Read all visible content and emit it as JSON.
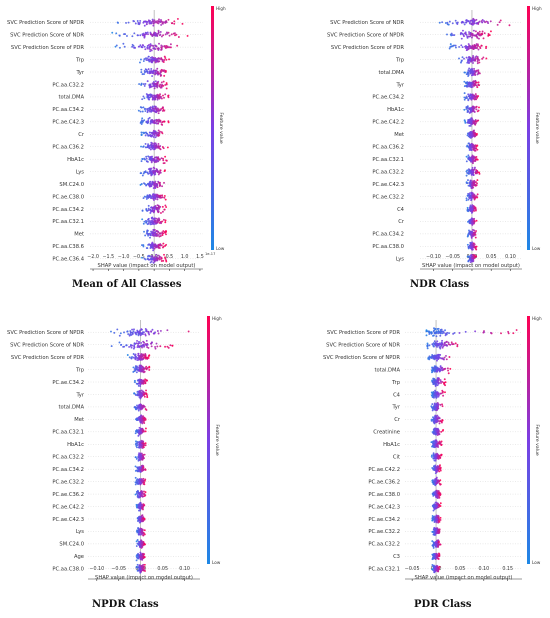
{
  "captions": [
    "Mean of All Classes",
    "NDR Class",
    "NPDR Class",
    "PDR Class"
  ],
  "colors": {
    "low": "#1e88e5",
    "high": "#ff0052",
    "axis": "#333333",
    "zero": "#999999"
  },
  "chart_data": [
    {
      "type": "scatter",
      "subtype": "shap-beeswarm",
      "xlabel": "SHAP value (impact on model output)",
      "x_tick_labels": [
        "−2.0",
        "−1.5",
        "−1.0",
        "−0.5",
        "0.0",
        "0.5",
        "1.0",
        "1.5"
      ],
      "x_ticks": [
        -2.0,
        -1.5,
        -1.0,
        -0.5,
        0.0,
        0.5,
        1.0,
        1.5
      ],
      "x_offset_label": "1e-17",
      "xlim": [
        -2.1,
        1.6
      ],
      "colorbar": {
        "label": "Feature value",
        "high": "High",
        "low": "Low"
      },
      "features": [
        {
          "name": "SVC Prediction Score of NPDR",
          "min": -1.4,
          "max": 1.1,
          "center": 0.0,
          "spread": 0.45,
          "dense": 0.25
        },
        {
          "name": "SVC Prediction Score of NDR",
          "min": -1.4,
          "max": 1.1,
          "center": 0.0,
          "spread": 0.45,
          "dense": 0.25
        },
        {
          "name": "SVC Prediction Score of PDR",
          "min": -1.3,
          "max": 1.0,
          "center": 0.0,
          "spread": 0.4,
          "dense": 0.25
        },
        {
          "name": "Trp",
          "min": -0.5,
          "max": 0.5,
          "center": 0.0,
          "spread": 0.2,
          "dense": 0.15
        },
        {
          "name": "Tyr",
          "min": -0.5,
          "max": 0.5,
          "center": 0.0,
          "spread": 0.2,
          "dense": 0.15
        },
        {
          "name": "PC.aa.C32.2",
          "min": -0.5,
          "max": 0.5,
          "center": 0.0,
          "spread": 0.2,
          "dense": 0.15
        },
        {
          "name": "total.DMA",
          "min": -0.5,
          "max": 0.5,
          "center": 0.0,
          "spread": 0.2,
          "dense": 0.15
        },
        {
          "name": "PC.aa.C34.2",
          "min": -0.5,
          "max": 0.5,
          "center": 0.0,
          "spread": 0.2,
          "dense": 0.15
        },
        {
          "name": "PC.ae.C42.3",
          "min": -0.5,
          "max": 0.5,
          "center": 0.0,
          "spread": 0.2,
          "dense": 0.15
        },
        {
          "name": "Cr",
          "min": -0.45,
          "max": 0.45,
          "center": 0.0,
          "spread": 0.18,
          "dense": 0.12
        },
        {
          "name": "PC.aa.C36.2",
          "min": -0.45,
          "max": 0.45,
          "center": 0.0,
          "spread": 0.18,
          "dense": 0.12
        },
        {
          "name": "HbA1c",
          "min": -0.45,
          "max": 0.45,
          "center": 0.0,
          "spread": 0.18,
          "dense": 0.12
        },
        {
          "name": "Lys",
          "min": -0.45,
          "max": 0.45,
          "center": 0.0,
          "spread": 0.18,
          "dense": 0.12
        },
        {
          "name": "SM.C24.0",
          "min": -0.45,
          "max": 0.45,
          "center": 0.0,
          "spread": 0.18,
          "dense": 0.12
        },
        {
          "name": "PC.ae.C38.0",
          "min": -0.4,
          "max": 0.4,
          "center": 0.0,
          "spread": 0.16,
          "dense": 0.12
        },
        {
          "name": "PC.aa.C34.2",
          "min": -0.4,
          "max": 0.4,
          "center": 0.0,
          "spread": 0.16,
          "dense": 0.12
        },
        {
          "name": "PC.aa.C32.1",
          "min": -0.4,
          "max": 0.4,
          "center": 0.0,
          "spread": 0.16,
          "dense": 0.12
        },
        {
          "name": "Met",
          "min": -0.4,
          "max": 0.4,
          "center": 0.0,
          "spread": 0.16,
          "dense": 0.12
        },
        {
          "name": "PC.aa.C38.6",
          "min": -0.4,
          "max": 0.4,
          "center": 0.0,
          "spread": 0.16,
          "dense": 0.12
        },
        {
          "name": "PC.ae.C36.4",
          "min": -0.4,
          "max": 0.4,
          "center": 0.0,
          "spread": 0.16,
          "dense": 0.12
        }
      ]
    },
    {
      "type": "scatter",
      "subtype": "shap-beeswarm",
      "xlabel": "SHAP value (impact on model output)",
      "x_tick_labels": [
        "−0.10",
        "−0.05",
        "0.00",
        "0.05",
        "0.10"
      ],
      "x_ticks": [
        -0.1,
        -0.05,
        0.0,
        0.05,
        0.1
      ],
      "xlim": [
        -0.135,
        0.13
      ],
      "colorbar": {
        "label": "Feature value",
        "high": "High",
        "low": "Low"
      },
      "features": [
        {
          "name": "SVC Prediction Score of NDR",
          "min": -0.09,
          "max": 0.11,
          "center": 0.0,
          "spread": 0.035,
          "dense": 0.02
        },
        {
          "name": "SVC Prediction Score of NPDR",
          "min": -0.07,
          "max": 0.05,
          "center": 0.0,
          "spread": 0.025,
          "dense": 0.015
        },
        {
          "name": "SVC Prediction Score of PDR",
          "min": -0.06,
          "max": 0.04,
          "center": 0.0,
          "spread": 0.02,
          "dense": 0.012
        },
        {
          "name": "Trp",
          "min": -0.04,
          "max": 0.04,
          "center": 0.0,
          "spread": 0.015,
          "dense": 0.008
        },
        {
          "name": "total.DMA",
          "min": -0.02,
          "max": 0.03,
          "center": 0.0,
          "spread": 0.01,
          "dense": 0.006
        },
        {
          "name": "Tyr",
          "min": -0.02,
          "max": 0.02,
          "center": 0.0,
          "spread": 0.01,
          "dense": 0.006
        },
        {
          "name": "PC.ae.C34.2",
          "min": -0.02,
          "max": 0.02,
          "center": 0.0,
          "spread": 0.008,
          "dense": 0.005
        },
        {
          "name": "HbA1c",
          "min": -0.02,
          "max": 0.02,
          "center": 0.0,
          "spread": 0.008,
          "dense": 0.005
        },
        {
          "name": "PC.ae.C42.2",
          "min": -0.02,
          "max": 0.02,
          "center": 0.0,
          "spread": 0.008,
          "dense": 0.005
        },
        {
          "name": "Met",
          "min": -0.015,
          "max": 0.015,
          "center": 0.0,
          "spread": 0.007,
          "dense": 0.004
        },
        {
          "name": "PC.aa.C36.2",
          "min": -0.015,
          "max": 0.015,
          "center": 0.0,
          "spread": 0.007,
          "dense": 0.004
        },
        {
          "name": "PC.aa.C32.1",
          "min": -0.015,
          "max": 0.015,
          "center": 0.0,
          "spread": 0.007,
          "dense": 0.004
        },
        {
          "name": "PC.aa.C32.2",
          "min": -0.015,
          "max": 0.02,
          "center": 0.0,
          "spread": 0.007,
          "dense": 0.004
        },
        {
          "name": "PC.ae.C42.3",
          "min": -0.015,
          "max": 0.015,
          "center": 0.0,
          "spread": 0.007,
          "dense": 0.004
        },
        {
          "name": "PC.ae.C32.2",
          "min": -0.015,
          "max": 0.015,
          "center": 0.0,
          "spread": 0.007,
          "dense": 0.004
        },
        {
          "name": "C4",
          "min": -0.012,
          "max": 0.012,
          "center": 0.0,
          "spread": 0.006,
          "dense": 0.003
        },
        {
          "name": "Cr",
          "min": -0.012,
          "max": 0.012,
          "center": 0.0,
          "spread": 0.006,
          "dense": 0.003
        },
        {
          "name": "PC.aa.C34.2",
          "min": -0.012,
          "max": 0.012,
          "center": 0.0,
          "spread": 0.006,
          "dense": 0.003
        },
        {
          "name": "PC.aa.C38.0",
          "min": -0.012,
          "max": 0.012,
          "center": 0.0,
          "spread": 0.006,
          "dense": 0.003
        },
        {
          "name": "Lys",
          "min": -0.012,
          "max": 0.012,
          "center": 0.0,
          "spread": 0.006,
          "dense": 0.003
        }
      ]
    },
    {
      "type": "scatter",
      "subtype": "shap-beeswarm",
      "xlabel": "SHAP value (impact on model output)",
      "x_tick_labels": [
        "−0.10",
        "−0.05",
        "0.00",
        "0.05",
        "0.10"
      ],
      "x_ticks": [
        -0.1,
        -0.05,
        0.0,
        0.05,
        0.1
      ],
      "xlim": [
        -0.12,
        0.135
      ],
      "colorbar": {
        "label": "Feature value",
        "high": "High",
        "low": "Low"
      },
      "features": [
        {
          "name": "SVC Prediction Score of NPDR",
          "min": -0.07,
          "max": 0.12,
          "center": 0.0,
          "spread": 0.03,
          "dense": 0.02
        },
        {
          "name": "SVC Prediction Score of NDR",
          "min": -0.07,
          "max": 0.08,
          "center": 0.0,
          "spread": 0.025,
          "dense": 0.015
        },
        {
          "name": "SVC Prediction Score of PDR",
          "min": -0.03,
          "max": 0.02,
          "center": 0.0,
          "spread": 0.012,
          "dense": 0.008
        },
        {
          "name": "Trp",
          "min": -0.02,
          "max": 0.02,
          "center": 0.0,
          "spread": 0.008,
          "dense": 0.005
        },
        {
          "name": "PC.ae.C34.2",
          "min": -0.015,
          "max": 0.015,
          "center": 0.0,
          "spread": 0.007,
          "dense": 0.004
        },
        {
          "name": "Tyr",
          "min": -0.015,
          "max": 0.015,
          "center": 0.0,
          "spread": 0.007,
          "dense": 0.004
        },
        {
          "name": "total.DMA",
          "min": -0.015,
          "max": 0.015,
          "center": 0.0,
          "spread": 0.006,
          "dense": 0.004
        },
        {
          "name": "Met",
          "min": -0.012,
          "max": 0.012,
          "center": 0.0,
          "spread": 0.006,
          "dense": 0.003
        },
        {
          "name": "PC.aa.C32.1",
          "min": -0.012,
          "max": 0.012,
          "center": 0.0,
          "spread": 0.006,
          "dense": 0.003
        },
        {
          "name": "HbA1c",
          "min": -0.012,
          "max": 0.012,
          "center": 0.0,
          "spread": 0.006,
          "dense": 0.003
        },
        {
          "name": "PC.aa.C32.2",
          "min": -0.012,
          "max": 0.012,
          "center": 0.0,
          "spread": 0.006,
          "dense": 0.003
        },
        {
          "name": "PC.aa.C34.2",
          "min": -0.012,
          "max": 0.012,
          "center": 0.0,
          "spread": 0.006,
          "dense": 0.003
        },
        {
          "name": "PC.ae.C32.2",
          "min": -0.012,
          "max": 0.012,
          "center": 0.0,
          "spread": 0.006,
          "dense": 0.003
        },
        {
          "name": "PC.ae.C36.2",
          "min": -0.012,
          "max": 0.012,
          "center": 0.0,
          "spread": 0.006,
          "dense": 0.003
        },
        {
          "name": "PC.ae.C42.2",
          "min": -0.01,
          "max": 0.01,
          "center": 0.0,
          "spread": 0.005,
          "dense": 0.003
        },
        {
          "name": "PC.ae.C42.3",
          "min": -0.01,
          "max": 0.01,
          "center": 0.0,
          "spread": 0.005,
          "dense": 0.003
        },
        {
          "name": "Lys",
          "min": -0.01,
          "max": 0.01,
          "center": 0.0,
          "spread": 0.005,
          "dense": 0.003
        },
        {
          "name": "SM.C24.0",
          "min": -0.01,
          "max": 0.01,
          "center": 0.0,
          "spread": 0.005,
          "dense": 0.003
        },
        {
          "name": "Age",
          "min": -0.01,
          "max": 0.01,
          "center": 0.0,
          "spread": 0.005,
          "dense": 0.003
        },
        {
          "name": "PC.aa.C38.0",
          "min": -0.01,
          "max": 0.01,
          "center": 0.0,
          "spread": 0.005,
          "dense": 0.003
        }
      ]
    },
    {
      "type": "scatter",
      "subtype": "shap-beeswarm",
      "xlabel": "SHAP value (impact on model output)",
      "x_tick_labels": [
        "−0.05",
        "0.00",
        "0.05",
        "0.10",
        "0.15"
      ],
      "x_ticks": [
        -0.05,
        0.0,
        0.05,
        0.1,
        0.15
      ],
      "xlim": [
        -0.065,
        0.18
      ],
      "colorbar": {
        "label": "Feature value",
        "high": "High",
        "low": "Low"
      },
      "features": [
        {
          "name": "SVC Prediction Score of PDR",
          "min": -0.02,
          "max": 0.17,
          "center": 0.0,
          "spread": 0.02,
          "dense": 0.012
        },
        {
          "name": "SVC Prediction Score of NDR",
          "min": -0.02,
          "max": 0.05,
          "center": 0.01,
          "spread": 0.015,
          "dense": 0.01
        },
        {
          "name": "SVC Prediction Score of NPDR",
          "min": -0.02,
          "max": 0.04,
          "center": 0.0,
          "spread": 0.012,
          "dense": 0.008
        },
        {
          "name": "total.DMA",
          "min": -0.01,
          "max": 0.03,
          "center": 0.0,
          "spread": 0.008,
          "dense": 0.005
        },
        {
          "name": "Trp",
          "min": -0.01,
          "max": 0.02,
          "center": 0.0,
          "spread": 0.006,
          "dense": 0.004
        },
        {
          "name": "C4",
          "min": -0.01,
          "max": 0.02,
          "center": 0.0,
          "spread": 0.006,
          "dense": 0.004
        },
        {
          "name": "Tyr",
          "min": -0.01,
          "max": 0.015,
          "center": 0.0,
          "spread": 0.005,
          "dense": 0.003
        },
        {
          "name": "Cr",
          "min": -0.01,
          "max": 0.015,
          "center": 0.0,
          "spread": 0.005,
          "dense": 0.003
        },
        {
          "name": "Creatinine",
          "min": -0.01,
          "max": 0.015,
          "center": 0.0,
          "spread": 0.005,
          "dense": 0.003
        },
        {
          "name": "HbA1c",
          "min": -0.01,
          "max": 0.012,
          "center": 0.0,
          "spread": 0.005,
          "dense": 0.003
        },
        {
          "name": "Cit",
          "min": -0.01,
          "max": 0.012,
          "center": 0.0,
          "spread": 0.005,
          "dense": 0.003
        },
        {
          "name": "PC.ae.C42.2",
          "min": -0.008,
          "max": 0.01,
          "center": 0.0,
          "spread": 0.004,
          "dense": 0.003
        },
        {
          "name": "PC.ae.C36.2",
          "min": -0.008,
          "max": 0.01,
          "center": 0.0,
          "spread": 0.004,
          "dense": 0.003
        },
        {
          "name": "PC.ae.C38.0",
          "min": -0.008,
          "max": 0.01,
          "center": 0.0,
          "spread": 0.004,
          "dense": 0.003
        },
        {
          "name": "PC.ae.C42.3",
          "min": -0.008,
          "max": 0.01,
          "center": 0.0,
          "spread": 0.004,
          "dense": 0.003
        },
        {
          "name": "PC.ae.C34.2",
          "min": -0.008,
          "max": 0.01,
          "center": 0.0,
          "spread": 0.004,
          "dense": 0.003
        },
        {
          "name": "PC.ae.C32.2",
          "min": -0.008,
          "max": 0.01,
          "center": 0.0,
          "spread": 0.004,
          "dense": 0.003
        },
        {
          "name": "PC.aa.C32.2",
          "min": -0.008,
          "max": 0.01,
          "center": 0.0,
          "spread": 0.004,
          "dense": 0.003
        },
        {
          "name": "C3",
          "min": -0.008,
          "max": 0.008,
          "center": 0.0,
          "spread": 0.004,
          "dense": 0.003
        },
        {
          "name": "PC.aa.C32.1",
          "min": -0.008,
          "max": 0.008,
          "center": 0.0,
          "spread": 0.004,
          "dense": 0.003
        }
      ]
    }
  ]
}
